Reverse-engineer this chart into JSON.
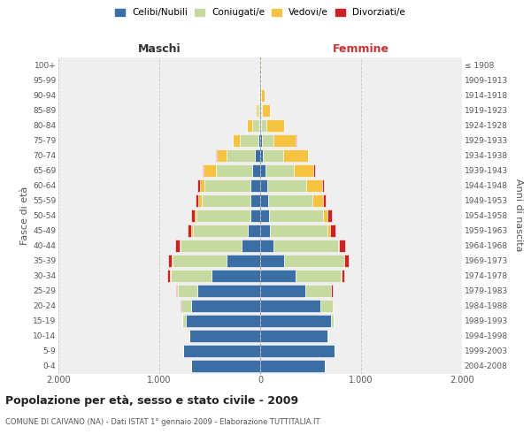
{
  "age_groups": [
    "0-4",
    "5-9",
    "10-14",
    "15-19",
    "20-24",
    "25-29",
    "30-34",
    "35-39",
    "40-44",
    "45-49",
    "50-54",
    "55-59",
    "60-64",
    "65-69",
    "70-74",
    "75-79",
    "80-84",
    "85-89",
    "90-94",
    "95-99",
    "100+"
  ],
  "birth_years": [
    "2004-2008",
    "1999-2003",
    "1994-1998",
    "1989-1993",
    "1984-1988",
    "1979-1983",
    "1974-1978",
    "1969-1973",
    "1964-1968",
    "1959-1963",
    "1954-1958",
    "1949-1953",
    "1944-1948",
    "1939-1943",
    "1934-1938",
    "1929-1933",
    "1924-1928",
    "1919-1923",
    "1914-1918",
    "1909-1913",
    "≤ 1908"
  ],
  "males": {
    "celibi": [
      680,
      760,
      700,
      740,
      680,
      620,
      480,
      330,
      180,
      120,
      100,
      100,
      100,
      80,
      50,
      20,
      10,
      5,
      5,
      2,
      2
    ],
    "coniugati": [
      0,
      0,
      5,
      30,
      100,
      200,
      410,
      540,
      610,
      550,
      530,
      480,
      450,
      360,
      280,
      180,
      70,
      20,
      5,
      0,
      0
    ],
    "vedovi": [
      0,
      0,
      0,
      0,
      5,
      5,
      5,
      5,
      5,
      10,
      20,
      30,
      50,
      120,
      100,
      70,
      50,
      20,
      5,
      0,
      0
    ],
    "divorziati": [
      0,
      0,
      0,
      0,
      5,
      10,
      25,
      40,
      50,
      40,
      35,
      30,
      20,
      10,
      5,
      5,
      0,
      0,
      0,
      0,
      0
    ]
  },
  "females": {
    "nubili": [
      640,
      740,
      670,
      700,
      600,
      450,
      350,
      240,
      130,
      100,
      90,
      80,
      70,
      50,
      30,
      15,
      10,
      5,
      5,
      2,
      2
    ],
    "coniugate": [
      0,
      0,
      5,
      30,
      120,
      250,
      450,
      590,
      640,
      570,
      530,
      440,
      390,
      280,
      200,
      120,
      55,
      15,
      5,
      0,
      0
    ],
    "vedove": [
      0,
      0,
      0,
      0,
      5,
      5,
      5,
      5,
      10,
      20,
      50,
      100,
      150,
      200,
      240,
      220,
      170,
      80,
      30,
      10,
      5
    ],
    "divorziate": [
      0,
      0,
      0,
      0,
      5,
      10,
      30,
      45,
      60,
      55,
      40,
      30,
      20,
      10,
      5,
      5,
      0,
      0,
      0,
      0,
      0
    ]
  },
  "colors": {
    "celibi": "#3a6ea5",
    "coniugati": "#c5d9a0",
    "vedovi": "#f5c242",
    "divorziati": "#cc2222"
  },
  "title": "Popolazione per età, sesso e stato civile - 2009",
  "subtitle": "COMUNE DI CAIVANO (NA) - Dati ISTAT 1° gennaio 2009 - Elaborazione TUTTITALIA.IT",
  "ylabel_left": "Fasce di età",
  "ylabel_right": "Anni di nascita",
  "xlabel_left": "Maschi",
  "xlabel_right": "Femmine",
  "xlim": 2000,
  "background_color": "#ffffff",
  "plot_bg_color": "#efefef"
}
